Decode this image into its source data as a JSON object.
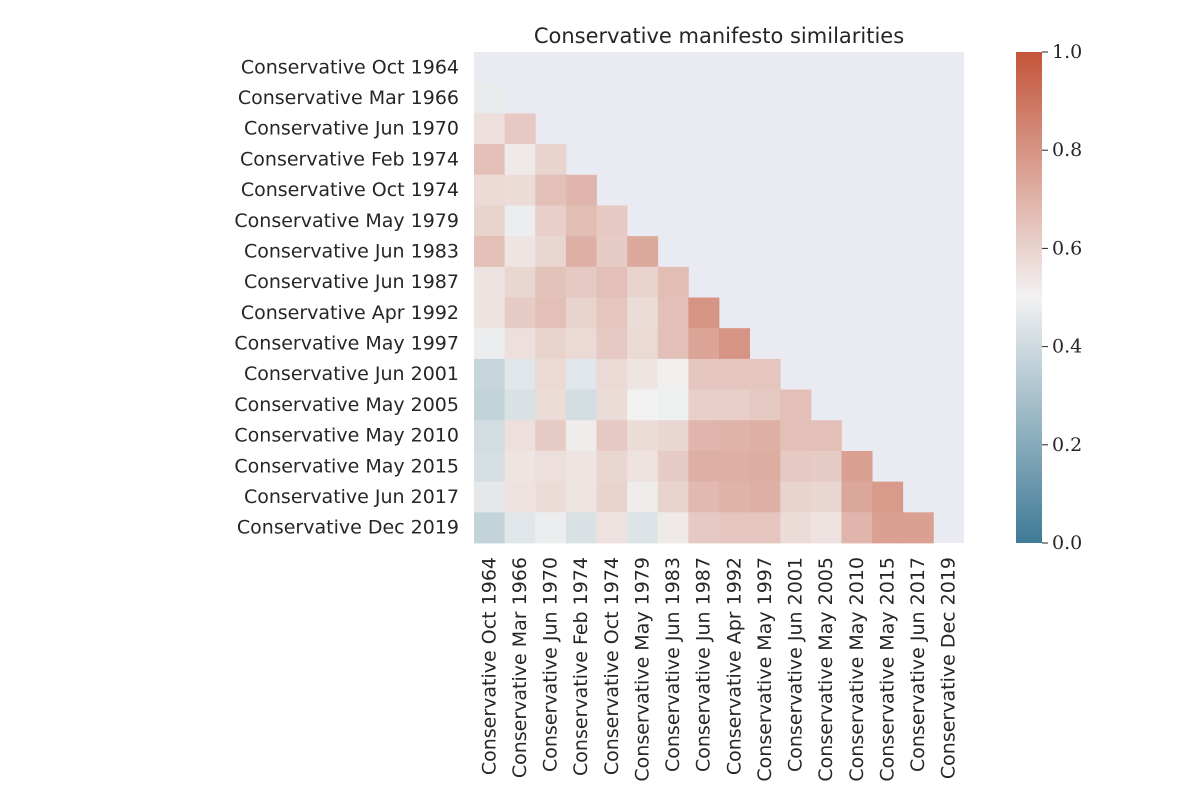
{
  "chart_data": {
    "type": "heatmap",
    "title": "Conservative manifesto similarities",
    "labels": [
      "Conservative Oct 1964",
      "Conservative Mar 1966",
      "Conservative Jun 1970",
      "Conservative Feb 1974",
      "Conservative Oct 1974",
      "Conservative May 1979",
      "Conservative Jun 1983",
      "Conservative Jun 1987",
      "Conservative Apr 1992",
      "Conservative May 1997",
      "Conservative Jun 2001",
      "Conservative May 2005",
      "Conservative May 2010",
      "Conservative May 2015",
      "Conservative Jun 2017",
      "Conservative Dec 2019"
    ],
    "values": [
      [],
      [
        0.47
      ],
      [
        0.56,
        0.63
      ],
      [
        0.66,
        0.53,
        0.6
      ],
      [
        0.58,
        0.57,
        0.66,
        0.69
      ],
      [
        0.6,
        0.48,
        0.61,
        0.67,
        0.63
      ],
      [
        0.66,
        0.54,
        0.59,
        0.71,
        0.62,
        0.73
      ],
      [
        0.55,
        0.59,
        0.65,
        0.63,
        0.66,
        0.6,
        0.67
      ],
      [
        0.55,
        0.62,
        0.66,
        0.6,
        0.64,
        0.57,
        0.66,
        0.8
      ],
      [
        0.48,
        0.56,
        0.6,
        0.58,
        0.63,
        0.58,
        0.66,
        0.75,
        0.8
      ],
      [
        0.38,
        0.45,
        0.58,
        0.45,
        0.58,
        0.54,
        0.51,
        0.64,
        0.64,
        0.64
      ],
      [
        0.37,
        0.43,
        0.57,
        0.41,
        0.57,
        0.5,
        0.49,
        0.61,
        0.61,
        0.63,
        0.66
      ],
      [
        0.41,
        0.56,
        0.62,
        0.52,
        0.63,
        0.57,
        0.59,
        0.69,
        0.7,
        0.71,
        0.66,
        0.66
      ],
      [
        0.42,
        0.54,
        0.56,
        0.54,
        0.59,
        0.55,
        0.62,
        0.71,
        0.71,
        0.72,
        0.63,
        0.62,
        0.76
      ],
      [
        0.46,
        0.55,
        0.57,
        0.54,
        0.6,
        0.52,
        0.6,
        0.68,
        0.7,
        0.71,
        0.6,
        0.59,
        0.74,
        0.78
      ],
      [
        0.37,
        0.45,
        0.48,
        0.43,
        0.55,
        0.44,
        0.53,
        0.63,
        0.64,
        0.64,
        0.57,
        0.55,
        0.69,
        0.76,
        0.76
      ]
    ],
    "mask": "upper triangle including diagonal",
    "colorbar": {
      "min": 0.0,
      "max": 1.0,
      "ticks": [
        "0.0",
        "0.2",
        "0.4",
        "0.6",
        "0.8",
        "1.0"
      ],
      "colormap": "diverging blue-white-red",
      "color_low": "#3f7a96",
      "color_mid": "#f2f2f2",
      "color_high": "#c3553a"
    },
    "mask_color": "#eaeaf2"
  }
}
